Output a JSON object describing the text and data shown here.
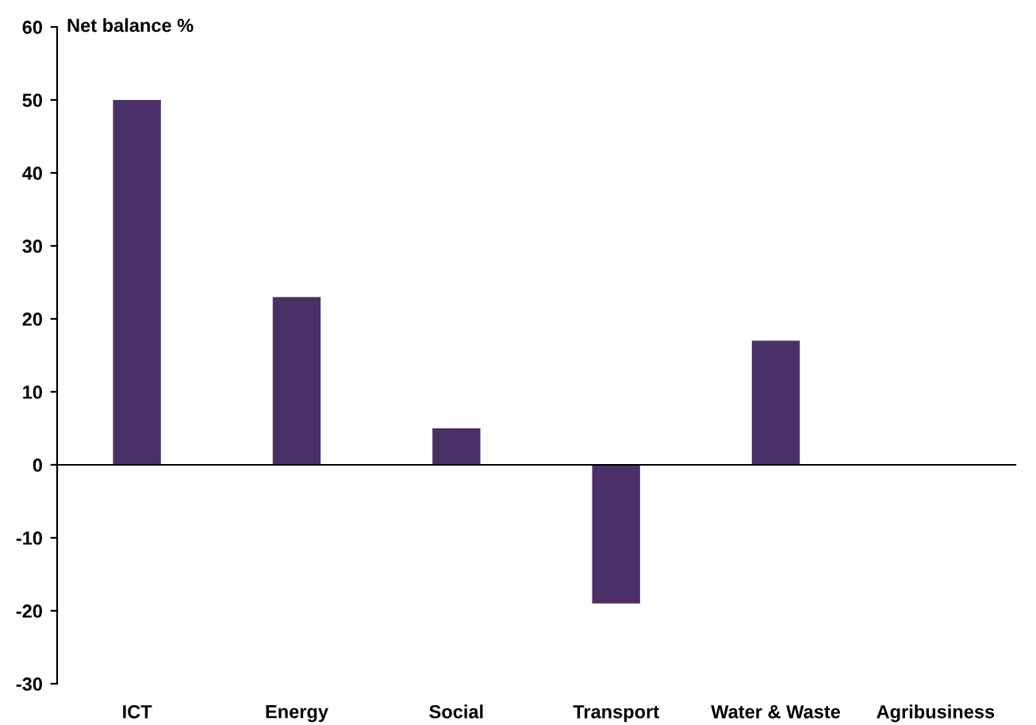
{
  "chart_data": {
    "type": "bar",
    "ylabel": "Net balance %",
    "categories": [
      "ICT",
      "Energy",
      "Social",
      "Transport",
      "Water & Waste",
      "Agribusiness"
    ],
    "values": [
      50,
      23,
      5,
      -19,
      17,
      0
    ],
    "color": "#4b3068",
    "ylim": [
      -30,
      60
    ],
    "yticks": [
      -30,
      -20,
      -10,
      0,
      10,
      20,
      30,
      40,
      50,
      60
    ],
    "legend": false
  }
}
